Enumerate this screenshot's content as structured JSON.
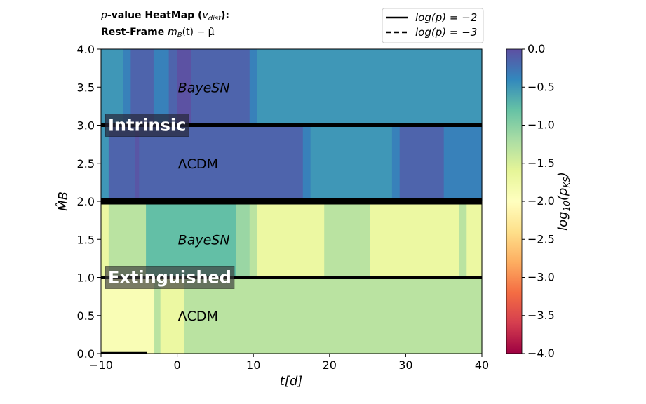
{
  "title": {
    "line1_prefix": "p",
    "line1_main": "-value HeatMap (",
    "line1_var": "v",
    "line1_sub": "dist",
    "line1_end": "):",
    "line2_main": "Rest-Frame ",
    "line2_m": "m",
    "line2_sub": "B",
    "line2_rest": "(t) − μ̂"
  },
  "legend": [
    {
      "label": "log(p) = −2",
      "style": "solid"
    },
    {
      "label": "log(p) = −3",
      "style": "dashed"
    }
  ],
  "colorbar": {
    "label": "log10(pKS)",
    "label_main": "log",
    "label_sub1": "10",
    "label_mid": "(p",
    "label_sub2": "KS",
    "label_end": ")",
    "ticks": [
      "0.0",
      "−0.5",
      "−1.0",
      "−1.5",
      "−2.0",
      "−2.5",
      "−3.0",
      "−3.5",
      "−4.0"
    ],
    "range": [
      -4,
      0
    ],
    "colormap": "Spectral"
  },
  "chart_data": {
    "type": "heatmap",
    "xlabel": "t[d]",
    "ylabel": "M̂B",
    "xlim": [
      -10,
      40
    ],
    "ylim": [
      0,
      4
    ],
    "xticks": [
      "−10",
      "0",
      "10",
      "20",
      "30",
      "40"
    ],
    "yticks": [
      "0.0",
      "0.5",
      "1.0",
      "1.5",
      "2.0",
      "2.5",
      "3.0",
      "3.5",
      "4.0"
    ],
    "rows": [
      {
        "name": "ΛCDM",
        "y": [
          0,
          1
        ],
        "segments": [
          {
            "x0": -10,
            "x1": -3,
            "v": -1.9
          },
          {
            "x0": -3,
            "x1": -2.2,
            "v": -1.3
          },
          {
            "x0": -2.2,
            "x1": 0.9,
            "v": -1.7
          },
          {
            "x0": 0.9,
            "x1": 40,
            "v": -1.3
          }
        ]
      },
      {
        "name": "BayeSN",
        "y": [
          1,
          2
        ],
        "segments": [
          {
            "x0": -10,
            "x1": -9,
            "v": -1.7
          },
          {
            "x0": -9,
            "x1": -4.1,
            "v": -1.3
          },
          {
            "x0": -4.1,
            "x1": 7.7,
            "v": -0.78
          },
          {
            "x0": 7.7,
            "x1": 9.5,
            "v": -1.1
          },
          {
            "x0": 9.5,
            "x1": 10.5,
            "v": -1.3
          },
          {
            "x0": 10.5,
            "x1": 19.3,
            "v": -1.7
          },
          {
            "x0": 19.3,
            "x1": 25.3,
            "v": -1.3
          },
          {
            "x0": 25.3,
            "x1": 37.0,
            "v": -1.7
          },
          {
            "x0": 37.0,
            "x1": 38.0,
            "v": -1.3
          },
          {
            "x0": 38.0,
            "x1": 40,
            "v": -1.7
          }
        ]
      },
      {
        "name": "ΛCDM",
        "y": [
          2,
          3
        ],
        "segments": [
          {
            "x0": -10,
            "x1": -9,
            "v": -0.5
          },
          {
            "x0": -9,
            "x1": -5.5,
            "v": -0.15
          },
          {
            "x0": -5.5,
            "x1": -5,
            "v": -0.05
          },
          {
            "x0": -5,
            "x1": 16.5,
            "v": -0.15
          },
          {
            "x0": 16.5,
            "x1": 17.5,
            "v": -0.35
          },
          {
            "x0": 17.5,
            "x1": 28.2,
            "v": -0.5
          },
          {
            "x0": 28.2,
            "x1": 29.2,
            "v": -0.35
          },
          {
            "x0": 29.2,
            "x1": 35.0,
            "v": -0.15
          },
          {
            "x0": 35.0,
            "x1": 40,
            "v": -0.35
          }
        ]
      },
      {
        "name": "BayeSN",
        "y": [
          3,
          4
        ],
        "segments": [
          {
            "x0": -10,
            "x1": -7.1,
            "v": -0.5
          },
          {
            "x0": -7.1,
            "x1": -6.1,
            "v": -0.35
          },
          {
            "x0": -6.1,
            "x1": -3.1,
            "v": -0.15
          },
          {
            "x0": -3.1,
            "x1": -1.1,
            "v": -0.35
          },
          {
            "x0": -1.1,
            "x1": 0.0,
            "v": -0.15
          },
          {
            "x0": 0.0,
            "x1": 1.8,
            "v": -0.02
          },
          {
            "x0": 1.8,
            "x1": 9.5,
            "v": -0.15
          },
          {
            "x0": 9.5,
            "x1": 10.5,
            "v": -0.35
          },
          {
            "x0": 10.5,
            "x1": 40,
            "v": -0.5
          }
        ]
      }
    ],
    "region_labels": [
      {
        "text": "BayeSN",
        "x": 0.1,
        "y": 3.5,
        "italic": true
      },
      {
        "text": "ΛCDM",
        "x": 0.1,
        "y": 2.5,
        "italic": false
      },
      {
        "text": "BayeSN",
        "x": 0.1,
        "y": 1.5,
        "italic": true
      },
      {
        "text": "ΛCDM",
        "x": 0.1,
        "y": 0.5,
        "italic": false
      }
    ],
    "group_labels": [
      {
        "text": "Intrinsic",
        "y": 3.0
      },
      {
        "text": "Extinguished",
        "y": 1.0
      }
    ],
    "hlines": [
      {
        "y": 3.0,
        "weight": "medium"
      },
      {
        "y": 2.0,
        "weight": "thick"
      },
      {
        "y": 1.0,
        "weight": "medium"
      }
    ],
    "contour_segments": [
      {
        "x0": -10,
        "x1": -4.0,
        "y": 0.0,
        "style": "solid"
      }
    ]
  }
}
